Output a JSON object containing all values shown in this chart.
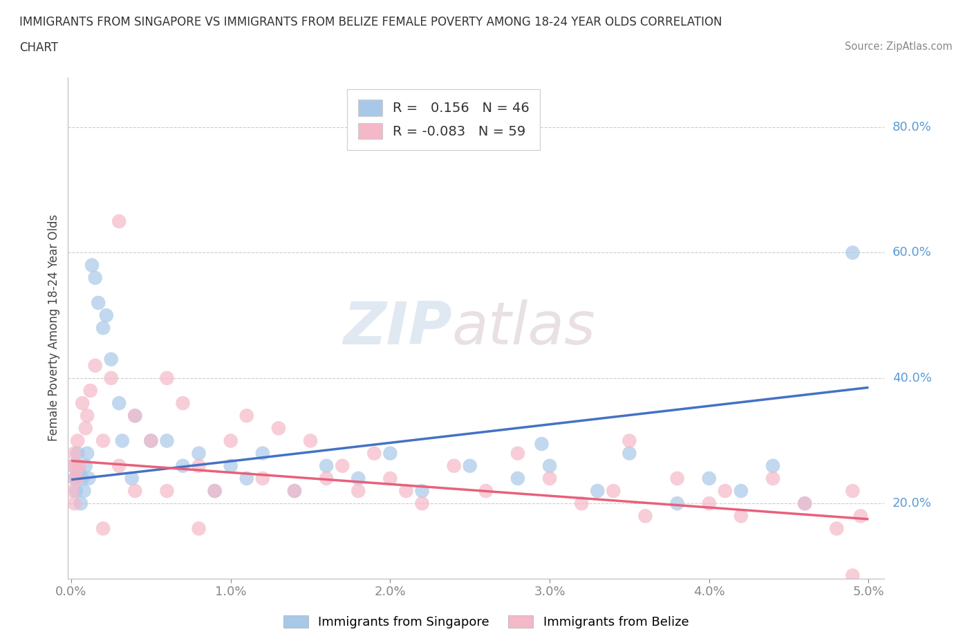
{
  "title_line1": "IMMIGRANTS FROM SINGAPORE VS IMMIGRANTS FROM BELIZE FEMALE POVERTY AMONG 18-24 YEAR OLDS CORRELATION",
  "title_line2": "CHART",
  "source": "Source: ZipAtlas.com",
  "ylabel": "Female Poverty Among 18-24 Year Olds",
  "xlim": [
    -0.0002,
    0.051
  ],
  "ylim": [
    0.08,
    0.88
  ],
  "xticks": [
    0.0,
    0.01,
    0.02,
    0.03,
    0.04,
    0.05
  ],
  "xtick_labels": [
    "0.0%",
    "1.0%",
    "2.0%",
    "3.0%",
    "4.0%",
    "5.0%"
  ],
  "yticks_right": [
    0.2,
    0.4,
    0.6,
    0.8
  ],
  "ytick_labels_right": [
    "20.0%",
    "40.0%",
    "60.0%",
    "80.0%"
  ],
  "r_singapore": 0.156,
  "n_singapore": 46,
  "r_belize": -0.083,
  "n_belize": 59,
  "color_singapore": "#a8c8e8",
  "color_belize": "#f4b8c8",
  "trendline_singapore_color": "#4472c4",
  "trendline_belize_color": "#e8607a",
  "watermark": "ZIPatlas",
  "background_color": "#ffffff",
  "grid_color": "#cccccc",
  "sg_trendline_x": [
    0.0,
    0.05
  ],
  "sg_trendline_y": [
    0.238,
    0.385
  ],
  "bl_trendline_x": [
    0.0,
    0.05
  ],
  "bl_trendline_y": [
    0.268,
    0.175
  ],
  "sg_x": [
    0.0001,
    0.0002,
    0.0003,
    0.0004,
    0.0005,
    0.0006,
    0.0007,
    0.0008,
    0.0009,
    0.001,
    0.0011,
    0.0013,
    0.0015,
    0.0017,
    0.002,
    0.0022,
    0.0025,
    0.003,
    0.0032,
    0.0038,
    0.004,
    0.005,
    0.006,
    0.007,
    0.008,
    0.009,
    0.01,
    0.011,
    0.012,
    0.014,
    0.016,
    0.018,
    0.02,
    0.022,
    0.025,
    0.028,
    0.03,
    0.033,
    0.035,
    0.038,
    0.04,
    0.042,
    0.044,
    0.046,
    0.0295,
    0.049
  ],
  "sg_y": [
    0.26,
    0.24,
    0.22,
    0.28,
    0.25,
    0.2,
    0.24,
    0.22,
    0.26,
    0.28,
    0.24,
    0.58,
    0.56,
    0.52,
    0.48,
    0.5,
    0.43,
    0.36,
    0.3,
    0.24,
    0.34,
    0.3,
    0.3,
    0.26,
    0.28,
    0.22,
    0.26,
    0.24,
    0.28,
    0.22,
    0.26,
    0.24,
    0.28,
    0.22,
    0.26,
    0.24,
    0.26,
    0.22,
    0.28,
    0.2,
    0.24,
    0.22,
    0.26,
    0.2,
    0.295,
    0.6
  ],
  "bl_x": [
    0.0001,
    0.0002,
    0.0003,
    0.0004,
    0.0005,
    0.0007,
    0.0009,
    0.001,
    0.0012,
    0.0015,
    0.002,
    0.0025,
    0.003,
    0.004,
    0.005,
    0.006,
    0.007,
    0.008,
    0.009,
    0.01,
    0.011,
    0.012,
    0.013,
    0.014,
    0.015,
    0.016,
    0.017,
    0.018,
    0.019,
    0.02,
    0.021,
    0.022,
    0.024,
    0.026,
    0.028,
    0.03,
    0.032,
    0.034,
    0.035,
    0.036,
    0.038,
    0.04,
    0.041,
    0.042,
    0.044,
    0.046,
    0.048,
    0.049,
    0.0495,
    0.0001,
    0.0002,
    0.0003,
    0.0004,
    0.002,
    0.003,
    0.004,
    0.006,
    0.008,
    0.049
  ],
  "bl_y": [
    0.26,
    0.28,
    0.24,
    0.3,
    0.26,
    0.36,
    0.32,
    0.34,
    0.38,
    0.42,
    0.3,
    0.4,
    0.26,
    0.34,
    0.3,
    0.4,
    0.36,
    0.26,
    0.22,
    0.3,
    0.34,
    0.24,
    0.32,
    0.22,
    0.3,
    0.24,
    0.26,
    0.22,
    0.28,
    0.24,
    0.22,
    0.2,
    0.26,
    0.22,
    0.28,
    0.24,
    0.2,
    0.22,
    0.3,
    0.18,
    0.24,
    0.2,
    0.22,
    0.18,
    0.24,
    0.2,
    0.16,
    0.22,
    0.18,
    0.22,
    0.2,
    0.24,
    0.26,
    0.16,
    0.65,
    0.22,
    0.22,
    0.16,
    0.085
  ]
}
